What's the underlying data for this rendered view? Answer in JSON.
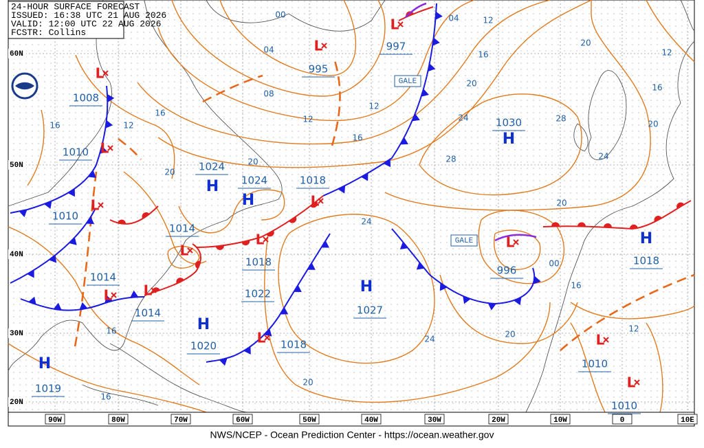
{
  "header": {
    "lines": [
      "24-HOUR SURFACE FORECAST",
      "ISSUED: 16:38 UTC 21 AUG 2026",
      "VALID: 12:00 UTC 22 AUG 2026",
      "FCSTR: Collins"
    ]
  },
  "lat_labels": [
    "60N",
    "50N",
    "40N",
    "30N",
    "20N"
  ],
  "lon_labels": [
    "90W",
    "80W",
    "70W",
    "60W",
    "50W",
    "40W",
    "30W",
    "20W",
    "10W",
    "0",
    "10E"
  ],
  "highs": [
    "H",
    "H",
    "H",
    "H",
    "H",
    "H",
    "H"
  ],
  "lows": [
    "L",
    "L",
    "L",
    "L",
    "L",
    "L",
    "L",
    "L",
    "L",
    "L",
    "L",
    "L",
    "L",
    "L"
  ],
  "pressure_labels": [
    "1008",
    "1010",
    "1010",
    "1014",
    "1014",
    "1024",
    "1024",
    "1014",
    "1018",
    "1018",
    "1022",
    "1020",
    "1018",
    "1027",
    "1030",
    "995",
    "997",
    "996",
    "1018",
    "1010",
    "1010",
    "1019"
  ],
  "isobar_labels": [
    "00",
    "04",
    "08",
    "12",
    "12",
    "16",
    "16",
    "16",
    "12",
    "20",
    "20",
    "04",
    "12",
    "16",
    "20",
    "24",
    "28",
    "28",
    "20",
    "12",
    "16",
    "20",
    "24",
    "20",
    "24",
    "24",
    "20",
    "16",
    "12",
    "20",
    "16",
    "16",
    "00"
  ],
  "gale_labels": [
    "GALE",
    "GALE"
  ],
  "footer": "NWS/NCEP - Ocean Prediction Center - https://ocean.weather.gov"
}
